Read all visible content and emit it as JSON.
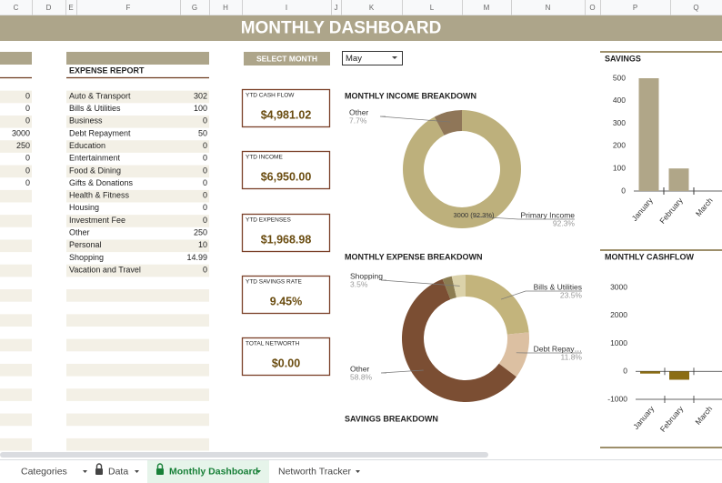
{
  "column_headers": [
    "C",
    "D",
    "E",
    "F",
    "G",
    "H",
    "I",
    "J",
    "K",
    "L",
    "M",
    "N",
    "O",
    "P",
    "Q"
  ],
  "title": "MONTHLY DASHBOARD",
  "left_column_values": [
    0,
    0,
    0,
    3000,
    250,
    0,
    0,
    0
  ],
  "expense_report": {
    "title": "EXPENSE REPORT",
    "rows": [
      [
        "Auto & Transport",
        302
      ],
      [
        "Bills & Utilities",
        100
      ],
      [
        "Business",
        0
      ],
      [
        "Debt Repayment",
        50
      ],
      [
        "Education",
        0
      ],
      [
        "Entertainment",
        0
      ],
      [
        "Food & Dining",
        0
      ],
      [
        "Gifts & Donations",
        0
      ],
      [
        "Health & Fitness",
        0
      ],
      [
        "Housing",
        0
      ],
      [
        "Investment Fee",
        0
      ],
      [
        "Other",
        250
      ],
      [
        "Personal",
        10
      ],
      [
        "Shopping",
        14.99
      ],
      [
        "Vacation and Travel",
        0
      ]
    ]
  },
  "select_month": {
    "label": "SELECT MONTH",
    "value": "May"
  },
  "kpis": [
    {
      "label": "YTD CASH FLOW",
      "value": "$4,981.02"
    },
    {
      "label": "YTD INCOME",
      "value": "$6,950.00"
    },
    {
      "label": "YTD EXPENSES",
      "value": "$1,968.98"
    },
    {
      "label": "YTD SAVINGS RATE",
      "value": "9.45%"
    },
    {
      "label": "TOTAL NETWORTH",
      "value": "$0.00"
    }
  ],
  "charts": [
    {
      "type": "donut",
      "title": "MONTHLY INCOME BREAKDOWN",
      "categories": [
        "Primary Income",
        "Other"
      ],
      "values": [
        3000,
        250
      ],
      "value_labels": [
        "92.3%",
        "7.7%"
      ],
      "inside_label": "3000 (92.3%)",
      "colors": [
        "#bdb07c",
        "#8f7658"
      ]
    },
    {
      "type": "donut",
      "title": "MONTHLY EXPENSE BREAKDOWN",
      "categories": [
        "Bills & Utilities",
        "Debt Repay…",
        "Other",
        null,
        "Shopping"
      ],
      "values": [
        23.5,
        11.8,
        58.8,
        2.4,
        3.5
      ],
      "value_labels": [
        "23.5%",
        "11.8%",
        "58.8%",
        null,
        "3.5%"
      ],
      "colors": [
        "#c3b47c",
        "#dcc0a2",
        "#7b4e33",
        "#8c7d52",
        "#dbd2aa"
      ]
    },
    {
      "type": "bar",
      "title": "SAVINGS",
      "categories": [
        "January",
        "February",
        "March"
      ],
      "values": [
        500,
        100,
        0
      ],
      "color": "#b0a688",
      "ylim": [
        0,
        500
      ],
      "yticks": [
        0,
        100,
        200,
        300,
        400,
        500
      ]
    },
    {
      "type": "bar",
      "title": "MONTHLY CASHFLOW",
      "categories": [
        "January",
        "February",
        "March"
      ],
      "values": [
        -80,
        -300,
        0
      ],
      "color": "#8b6d14",
      "ylim": [
        -1000,
        3000
      ],
      "yticks": [
        -1000,
        0,
        1000,
        2000,
        3000
      ]
    },
    {
      "type": "heading",
      "title": "SAVINGS BREAKDOWN"
    }
  ],
  "tabs": [
    "Categories",
    "Data",
    "Monthly Dashboard",
    "Networth Tracker"
  ]
}
